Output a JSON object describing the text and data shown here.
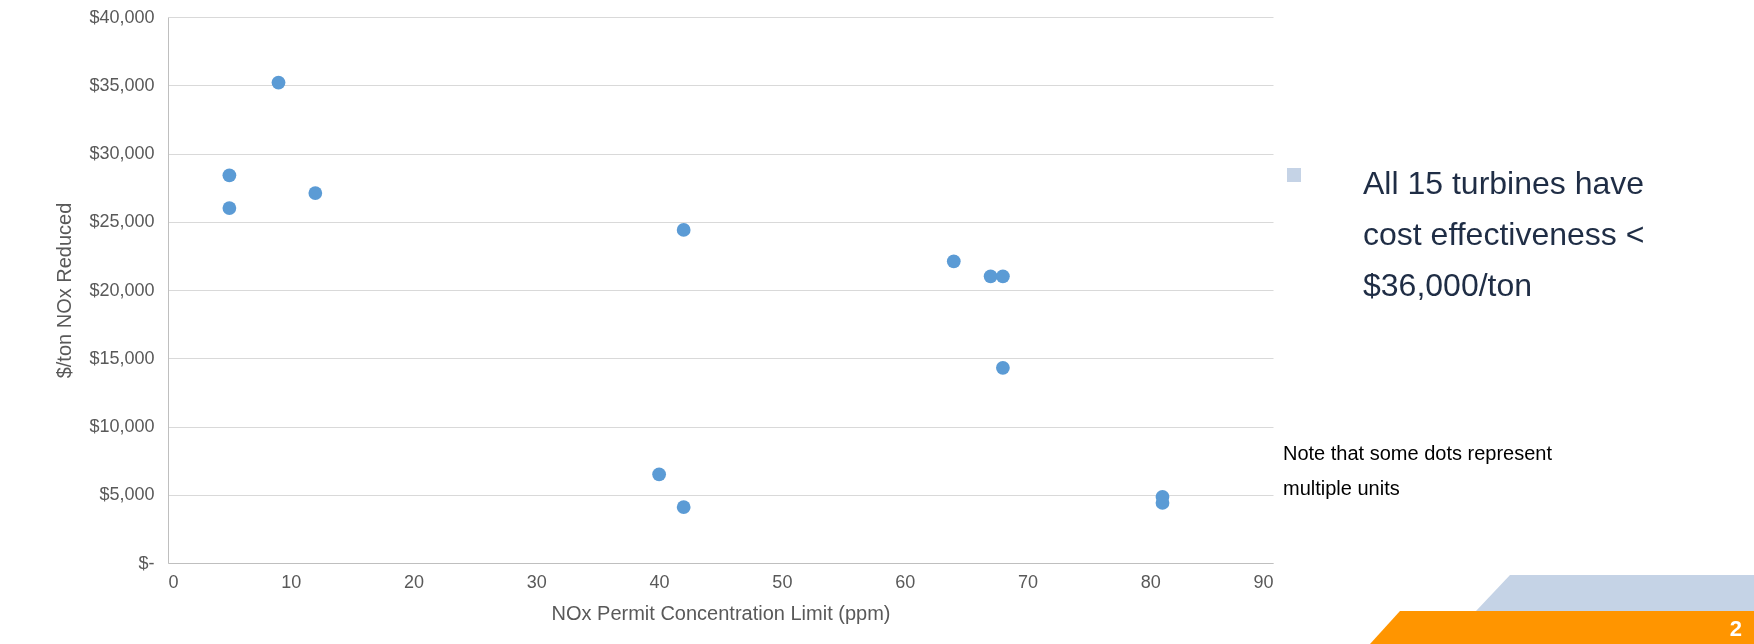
{
  "chart_data": {
    "type": "scatter",
    "xlabel": "NOx Permit Concentration Limit (ppm)",
    "ylabel": "$/ton NOx Reduced",
    "x": [
      5,
      5,
      9,
      12,
      42,
      40,
      42,
      64,
      67,
      68,
      68,
      81,
      81
    ],
    "series": [
      {
        "color": "#5b9bd5",
        "values": [
          28400,
          26000,
          35200,
          27100,
          24400,
          6500,
          4100,
          22100,
          21000,
          21000,
          14300,
          4850,
          4400
        ]
      }
    ],
    "xlim": [
      0,
      90
    ],
    "xticks": [
      0,
      10,
      20,
      30,
      40,
      50,
      60,
      70,
      80,
      90
    ],
    "ylim": [
      0,
      40000
    ],
    "yticks": [
      {
        "value": 0,
        "label": "$-"
      },
      {
        "value": 5000,
        "label": "$5,000"
      },
      {
        "value": 10000,
        "label": "$10,000"
      },
      {
        "value": 15000,
        "label": "$15,000"
      },
      {
        "value": 20000,
        "label": "$20,000"
      },
      {
        "value": 25000,
        "label": "$25,000"
      },
      {
        "value": 30000,
        "label": "$30,000"
      },
      {
        "value": 35000,
        "label": "$35,000"
      },
      {
        "value": 40000,
        "label": "$40,000"
      }
    ],
    "grid": "y",
    "marker": "circle",
    "annotations": [
      "All 15 turbines have cost effectiveness < $36,000/ton",
      "Note that some dots represent multiple units",
      "2"
    ]
  }
}
